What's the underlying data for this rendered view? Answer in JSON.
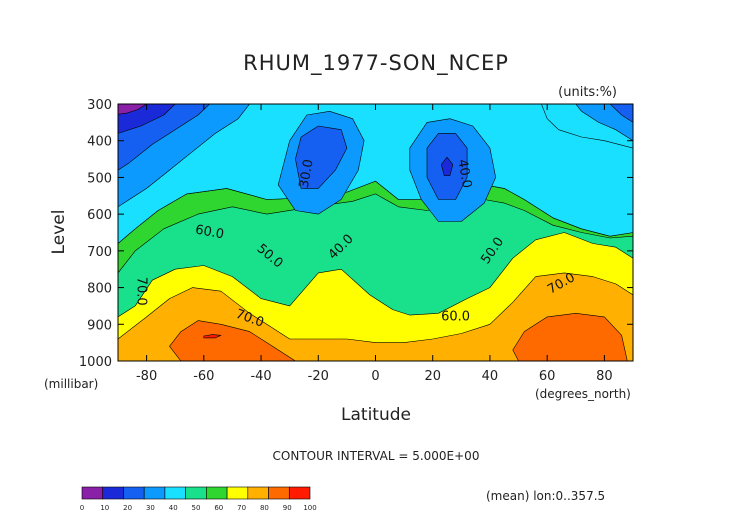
{
  "chart_data": {
    "type": "heatmap",
    "title": "RHUM_1977-SON_NCEP",
    "units_label": "(units:%)",
    "xlabel": "Latitude",
    "ylabel": "Level",
    "x_unit_label": "(degrees_north)",
    "y_unit_label": "(millibar)",
    "xlim": [
      -90,
      90
    ],
    "ylim": [
      1000,
      300
    ],
    "x_ticks": [
      -80,
      -60,
      -40,
      -20,
      0,
      20,
      40,
      60,
      80
    ],
    "x_tick_labels": [
      "-80",
      "-60",
      "-40",
      "-20",
      "0",
      "20",
      "40",
      "60",
      "80"
    ],
    "y_ticks": [
      300,
      400,
      500,
      600,
      700,
      800,
      900,
      1000
    ],
    "y_tick_labels": [
      "300",
      "400",
      "500",
      "600",
      "700",
      "800",
      "900",
      "1000"
    ],
    "contour_interval_text": "CONTOUR INTERVAL = 5.000E+00",
    "footnote": "(mean) lon:0..357.5",
    "colorbar": {
      "levels": [
        "0",
        "10",
        "20",
        "30",
        "40",
        "50",
        "60",
        "70",
        "80",
        "90",
        "100"
      ],
      "colors": [
        "#8a1fa8",
        "#1a2ad8",
        "#1560f0",
        "#0c9aff",
        "#19e0ff",
        "#19e08a",
        "#2fd62f",
        "#ffff00",
        "#ffb000",
        "#ff6a00",
        "#ff1a00"
      ]
    },
    "contour_labels": [
      {
        "lat": -24,
        "lev": 490,
        "text": "30.0",
        "rotate": -80
      },
      {
        "lat": -12,
        "lev": 690,
        "text": "40.0",
        "rotate": -45
      },
      {
        "lat": 31,
        "lev": 490,
        "text": "40.0",
        "rotate": 80
      },
      {
        "lat": 41,
        "lev": 700,
        "text": "50.0",
        "rotate": -55
      },
      {
        "lat": -37,
        "lev": 715,
        "text": "50.0",
        "rotate": 40
      },
      {
        "lat": -58,
        "lev": 650,
        "text": "60.0",
        "rotate": 10
      },
      {
        "lat": 28,
        "lev": 880,
        "text": "60.0",
        "rotate": 0
      },
      {
        "lat": -44,
        "lev": 885,
        "text": "70.0",
        "rotate": 20
      },
      {
        "lat": 65,
        "lev": 790,
        "text": "70.0",
        "rotate": -30
      },
      {
        "lat": -82,
        "lev": 810,
        "text": "70.0",
        "rotate": 90
      }
    ],
    "bands": [
      {
        "color": "#2fd62f",
        "points": [
          [
            -90,
            1000
          ],
          [
            90,
            1000
          ],
          [
            90,
            650
          ],
          [
            82,
            660
          ],
          [
            72,
            640
          ],
          [
            62,
            610
          ],
          [
            52,
            560
          ],
          [
            45,
            530
          ],
          [
            38,
            520
          ],
          [
            30,
            530
          ],
          [
            18,
            560
          ],
          [
            8,
            560
          ],
          [
            0,
            510
          ],
          [
            -10,
            540
          ],
          [
            -22,
            555
          ],
          [
            -38,
            560
          ],
          [
            -52,
            530
          ],
          [
            -66,
            545
          ],
          [
            -76,
            590
          ],
          [
            -84,
            640
          ],
          [
            -90,
            680
          ]
        ]
      },
      {
        "color": "#19e08a",
        "points": [
          [
            -90,
            1000
          ],
          [
            90,
            1000
          ],
          [
            90,
            660
          ],
          [
            82,
            665
          ],
          [
            72,
            650
          ],
          [
            62,
            630
          ],
          [
            52,
            590
          ],
          [
            45,
            570
          ],
          [
            38,
            560
          ],
          [
            28,
            575
          ],
          [
            18,
            590
          ],
          [
            8,
            580
          ],
          [
            0,
            545
          ],
          [
            -8,
            565
          ],
          [
            -22,
            580
          ],
          [
            -38,
            600
          ],
          [
            -50,
            580
          ],
          [
            -62,
            600
          ],
          [
            -74,
            640
          ],
          [
            -84,
            700
          ],
          [
            -90,
            760
          ]
        ]
      },
      {
        "color": "#ffff00",
        "points": [
          [
            -90,
            1000
          ],
          [
            90,
            1000
          ],
          [
            90,
            720
          ],
          [
            84,
            690
          ],
          [
            76,
            680
          ],
          [
            66,
            650
          ],
          [
            56,
            670
          ],
          [
            48,
            720
          ],
          [
            40,
            800
          ],
          [
            32,
            830
          ],
          [
            22,
            870
          ],
          [
            12,
            875
          ],
          [
            6,
            860
          ],
          [
            -2,
            820
          ],
          [
            -12,
            750
          ],
          [
            -20,
            760
          ],
          [
            -30,
            850
          ],
          [
            -40,
            830
          ],
          [
            -50,
            770
          ],
          [
            -60,
            740
          ],
          [
            -70,
            750
          ],
          [
            -78,
            780
          ],
          [
            -84,
            850
          ],
          [
            -90,
            880
          ]
        ]
      },
      {
        "color": "#ffb000",
        "points": [
          [
            -90,
            1000
          ],
          [
            90,
            1000
          ],
          [
            90,
            820
          ],
          [
            84,
            790
          ],
          [
            76,
            770
          ],
          [
            66,
            760
          ],
          [
            56,
            770
          ],
          [
            48,
            840
          ],
          [
            40,
            900
          ],
          [
            30,
            925
          ],
          [
            20,
            940
          ],
          [
            10,
            950
          ],
          [
            0,
            950
          ],
          [
            -10,
            940
          ],
          [
            -20,
            940
          ],
          [
            -30,
            940
          ],
          [
            -38,
            900
          ],
          [
            -44,
            870
          ],
          [
            -54,
            810
          ],
          [
            -64,
            800
          ],
          [
            -72,
            830
          ],
          [
            -80,
            880
          ],
          [
            -90,
            940
          ]
        ]
      },
      {
        "color": "#ff6a00",
        "points": [
          [
            -68,
            1000
          ],
          [
            -28,
            1000
          ],
          [
            -36,
            960
          ],
          [
            -44,
            920
          ],
          [
            -54,
            900
          ],
          [
            -62,
            890
          ],
          [
            -68,
            920
          ],
          [
            -72,
            960
          ]
        ]
      },
      {
        "color": "#ff6a00",
        "points": [
          [
            50,
            1000
          ],
          [
            88,
            1000
          ],
          [
            86,
            930
          ],
          [
            80,
            880
          ],
          [
            70,
            870
          ],
          [
            60,
            880
          ],
          [
            52,
            920
          ],
          [
            48,
            970
          ]
        ]
      },
      {
        "color": "#ff1a00",
        "points": [
          [
            -60,
            932
          ],
          [
            -57,
            928
          ],
          [
            -54,
            930
          ],
          [
            -56,
            937
          ],
          [
            -60,
            937
          ]
        ]
      },
      {
        "color": "#19e0ff",
        "points": [
          [
            -90,
            580
          ],
          [
            -84,
            520
          ],
          [
            -78,
            470
          ],
          [
            -72,
            430
          ],
          [
            -66,
            380
          ],
          [
            -58,
            340
          ],
          [
            -50,
            310
          ],
          [
            -44,
            300
          ],
          [
            58,
            300
          ],
          [
            60,
            340
          ],
          [
            64,
            370
          ],
          [
            72,
            390
          ],
          [
            80,
            400
          ],
          [
            90,
            420
          ],
          [
            90,
            650
          ],
          [
            82,
            660
          ],
          [
            72,
            640
          ],
          [
            62,
            610
          ],
          [
            52,
            560
          ],
          [
            45,
            530
          ],
          [
            38,
            520
          ],
          [
            30,
            530
          ],
          [
            18,
            560
          ],
          [
            8,
            560
          ],
          [
            0,
            510
          ],
          [
            -10,
            540
          ],
          [
            -22,
            555
          ],
          [
            -38,
            560
          ],
          [
            -52,
            530
          ],
          [
            -66,
            545
          ],
          [
            -76,
            590
          ],
          [
            -84,
            640
          ],
          [
            -90,
            680
          ]
        ]
      },
      {
        "color": "#0c9aff",
        "points": [
          [
            -34,
            520
          ],
          [
            -30,
            400
          ],
          [
            -24,
            330
          ],
          [
            -16,
            320
          ],
          [
            -8,
            340
          ],
          [
            -4,
            400
          ],
          [
            -6,
            480
          ],
          [
            -12,
            560
          ],
          [
            -20,
            600
          ],
          [
            -28,
            590
          ]
        ]
      },
      {
        "color": "#0c9aff",
        "points": [
          [
            12,
            420
          ],
          [
            18,
            350
          ],
          [
            26,
            340
          ],
          [
            34,
            360
          ],
          [
            40,
            420
          ],
          [
            42,
            500
          ],
          [
            38,
            570
          ],
          [
            30,
            620
          ],
          [
            22,
            620
          ],
          [
            16,
            560
          ],
          [
            12,
            480
          ]
        ]
      },
      {
        "color": "#0c9aff",
        "points": [
          [
            -90,
            300
          ],
          [
            -44,
            300
          ],
          [
            -48,
            340
          ],
          [
            -56,
            380
          ],
          [
            -64,
            430
          ],
          [
            -72,
            480
          ],
          [
            -80,
            530
          ],
          [
            -90,
            580
          ]
        ]
      },
      {
        "color": "#0c9aff",
        "points": [
          [
            70,
            300
          ],
          [
            90,
            300
          ],
          [
            90,
            400
          ],
          [
            84,
            370
          ],
          [
            78,
            350
          ],
          [
            72,
            320
          ]
        ]
      },
      {
        "color": "#1560f0",
        "points": [
          [
            -28,
            450
          ],
          [
            -26,
            390
          ],
          [
            -20,
            360
          ],
          [
            -12,
            370
          ],
          [
            -10,
            420
          ],
          [
            -14,
            480
          ],
          [
            -20,
            530
          ],
          [
            -26,
            530
          ]
        ]
      },
      {
        "color": "#1560f0",
        "points": [
          [
            18,
            420
          ],
          [
            22,
            380
          ],
          [
            28,
            380
          ],
          [
            32,
            420
          ],
          [
            32,
            500
          ],
          [
            28,
            560
          ],
          [
            22,
            560
          ],
          [
            18,
            500
          ]
        ]
      },
      {
        "color": "#1560f0",
        "points": [
          [
            -90,
            300
          ],
          [
            -58,
            300
          ],
          [
            -62,
            330
          ],
          [
            -70,
            370
          ],
          [
            -78,
            410
          ],
          [
            -86,
            460
          ],
          [
            -90,
            480
          ]
        ]
      },
      {
        "color": "#1560f0",
        "points": [
          [
            82,
            300
          ],
          [
            90,
            300
          ],
          [
            90,
            350
          ],
          [
            86,
            330
          ]
        ]
      },
      {
        "color": "#1a2ad8",
        "points": [
          [
            -90,
            300
          ],
          [
            -70,
            300
          ],
          [
            -74,
            330
          ],
          [
            -82,
            360
          ],
          [
            -90,
            380
          ]
        ]
      },
      {
        "color": "#1a2ad8",
        "points": [
          [
            23,
            465
          ],
          [
            25,
            445
          ],
          [
            27,
            465
          ],
          [
            26,
            495
          ],
          [
            24,
            495
          ]
        ]
      },
      {
        "color": "#8a1fa8",
        "points": [
          [
            -90,
            300
          ],
          [
            -80,
            300
          ],
          [
            -83,
            315
          ],
          [
            -87,
            325
          ],
          [
            -90,
            328
          ]
        ]
      }
    ]
  }
}
